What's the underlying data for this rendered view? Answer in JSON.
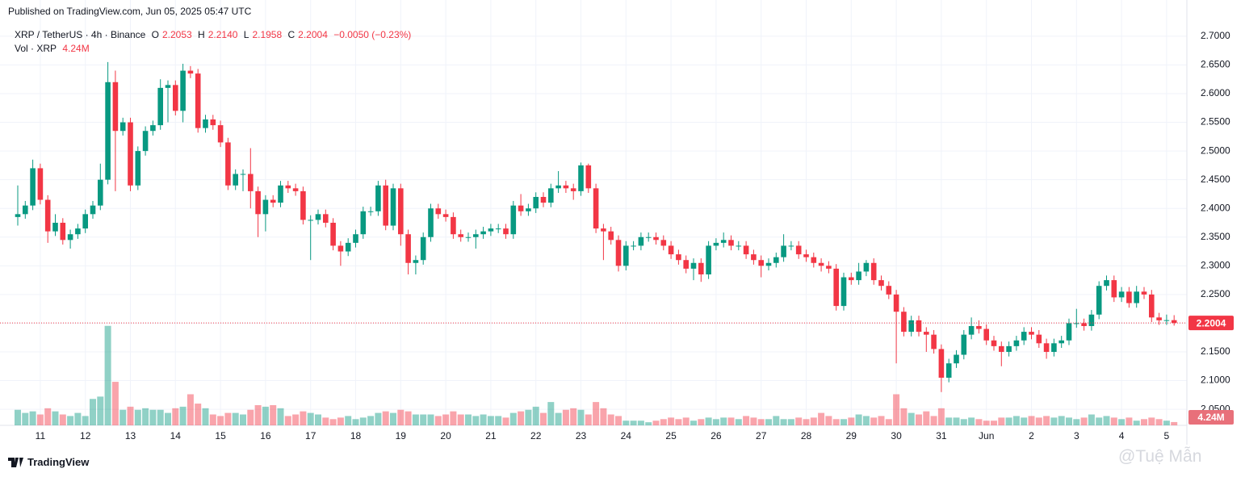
{
  "published": "Published on TradingView.com, Jun 05, 2025 05:47 UTC",
  "brand": "TradingView",
  "watermark": "@Tuệ Mẫn",
  "chart_data": {
    "type": "candlestick",
    "title": "XRP / TetherUS · 4h · Binance",
    "ohlc": [
      {
        "label": "O",
        "value": "2.2053"
      },
      {
        "label": "H",
        "value": "2.2140"
      },
      {
        "label": "L",
        "value": "2.1958"
      },
      {
        "label": "C",
        "value": "2.2004"
      }
    ],
    "change": "−0.0050 (−0.23%)",
    "volume_title": "Vol · XRP",
    "up_color": "#089981",
    "down_color": "#f23645",
    "grid": true,
    "ylim": [
      2.022,
      2.735
    ],
    "yticks": [
      {
        "value": 2.7,
        "label": "2.7000"
      },
      {
        "value": 2.65,
        "label": "2.6500"
      },
      {
        "value": 2.6,
        "label": "2.6000"
      },
      {
        "value": 2.55,
        "label": "2.5500"
      },
      {
        "value": 2.5,
        "label": "2.5000"
      },
      {
        "value": 2.45,
        "label": "2.4500"
      },
      {
        "value": 2.4,
        "label": "2.4000"
      },
      {
        "value": 2.35,
        "label": "2.3500"
      },
      {
        "value": 2.3,
        "label": "2.3000"
      },
      {
        "value": 2.25,
        "label": "2.2500"
      },
      {
        "value": 2.2,
        "label": "2.2000"
      },
      {
        "value": 2.15,
        "label": "2.1500"
      },
      {
        "value": 2.1,
        "label": "2.1000"
      },
      {
        "value": 2.05,
        "label": "2.0500"
      }
    ],
    "last_price": 2.2004,
    "last_volume": {
      "value": 4.24,
      "label": "4.24M"
    },
    "volume_ylim": [
      0,
      135
    ],
    "categories": [
      null,
      null,
      null,
      "11",
      null,
      null,
      null,
      null,
      null,
      "12",
      null,
      null,
      null,
      null,
      null,
      "13",
      null,
      null,
      null,
      null,
      null,
      "14",
      null,
      null,
      null,
      null,
      null,
      "15",
      null,
      null,
      null,
      null,
      null,
      "16",
      null,
      null,
      null,
      null,
      null,
      "17",
      null,
      null,
      null,
      null,
      null,
      "18",
      null,
      null,
      null,
      null,
      null,
      "19",
      null,
      null,
      null,
      null,
      null,
      "20",
      null,
      null,
      null,
      null,
      null,
      "21",
      null,
      null,
      null,
      null,
      null,
      "22",
      null,
      null,
      null,
      null,
      null,
      "23",
      null,
      null,
      null,
      null,
      null,
      "24",
      null,
      null,
      null,
      null,
      null,
      "25",
      null,
      null,
      null,
      null,
      null,
      "26",
      null,
      null,
      null,
      null,
      null,
      "27",
      null,
      null,
      null,
      null,
      null,
      "28",
      null,
      null,
      null,
      null,
      null,
      "29",
      null,
      null,
      null,
      null,
      null,
      "30",
      null,
      null,
      null,
      null,
      null,
      "31",
      null,
      null,
      null,
      null,
      null,
      "Jun",
      null,
      null,
      null,
      null,
      null,
      "2",
      null,
      null,
      null,
      null,
      null,
      "3",
      null,
      null,
      null,
      null,
      null,
      "4",
      null,
      null,
      null,
      null,
      null,
      "5",
      null
    ],
    "open": [
      2.385,
      2.39,
      2.405,
      2.47,
      2.415,
      2.36,
      2.375,
      2.345,
      2.355,
      2.365,
      2.39,
      2.405,
      2.45,
      2.62,
      2.535,
      2.55,
      2.44,
      2.5,
      2.535,
      2.545,
      2.61,
      2.615,
      2.57,
      2.64,
      2.635,
      2.54,
      2.555,
      2.545,
      2.515,
      2.44,
      2.46,
      2.46,
      2.43,
      2.39,
      2.415,
      2.41,
      2.44,
      2.435,
      2.43,
      2.38,
      2.38,
      2.39,
      2.375,
      2.335,
      2.325,
      2.34,
      2.355,
      2.395,
      2.395,
      2.44,
      2.37,
      2.435,
      2.355,
      2.305,
      2.31,
      2.35,
      2.4,
      2.39,
      2.385,
      2.355,
      2.35,
      2.35,
      2.355,
      2.36,
      2.365,
      2.365,
      2.355,
      2.405,
      2.395,
      2.4,
      2.42,
      2.41,
      2.435,
      2.44,
      2.435,
      2.43,
      2.475,
      2.435,
      2.365,
      2.36,
      2.345,
      2.3,
      2.335,
      2.335,
      2.35,
      2.35,
      2.345,
      2.335,
      2.32,
      2.31,
      2.295,
      2.305,
      2.285,
      2.335,
      2.34,
      2.345,
      2.335,
      2.335,
      2.32,
      2.31,
      2.3,
      2.305,
      2.315,
      2.335,
      2.335,
      2.32,
      2.315,
      2.305,
      2.3,
      2.295,
      2.23,
      2.28,
      2.275,
      2.29,
      2.305,
      2.275,
      2.265,
      2.25,
      2.22,
      2.185,
      2.205,
      2.185,
      2.18,
      2.155,
      2.105,
      2.13,
      2.145,
      2.18,
      2.195,
      2.19,
      2.17,
      2.16,
      2.15,
      2.16,
      2.17,
      2.185,
      2.18,
      2.165,
      2.15,
      2.165,
      2.17,
      2.2,
      2.2,
      2.195,
      2.215,
      2.265,
      2.275,
      2.245,
      2.255,
      2.235,
      2.255,
      2.25,
      2.21,
      2.205,
      2.2053
    ],
    "high": [
      2.44,
      2.413,
      2.485,
      2.478,
      2.423,
      2.39,
      2.383,
      2.363,
      2.373,
      2.398,
      2.413,
      2.478,
      2.655,
      2.64,
      2.558,
      2.558,
      2.508,
      2.543,
      2.553,
      2.625,
      2.623,
      2.623,
      2.652,
      2.648,
      2.643,
      2.563,
      2.563,
      2.553,
      2.523,
      2.468,
      2.468,
      2.505,
      2.438,
      2.423,
      2.423,
      2.448,
      2.448,
      2.443,
      2.438,
      2.388,
      2.398,
      2.398,
      2.383,
      2.343,
      2.348,
      2.363,
      2.403,
      2.403,
      2.448,
      2.45,
      2.443,
      2.443,
      2.363,
      2.318,
      2.358,
      2.408,
      2.408,
      2.398,
      2.393,
      2.363,
      2.358,
      2.363,
      2.368,
      2.373,
      2.373,
      2.373,
      2.413,
      2.425,
      2.408,
      2.428,
      2.428,
      2.443,
      2.465,
      2.448,
      2.443,
      2.48,
      2.478,
      2.443,
      2.373,
      2.368,
      2.353,
      2.343,
      2.343,
      2.358,
      2.358,
      2.358,
      2.353,
      2.343,
      2.328,
      2.318,
      2.313,
      2.313,
      2.343,
      2.348,
      2.358,
      2.353,
      2.343,
      2.343,
      2.328,
      2.318,
      2.313,
      2.323,
      2.355,
      2.343,
      2.343,
      2.328,
      2.323,
      2.313,
      2.308,
      2.303,
      2.288,
      2.288,
      2.305,
      2.31,
      2.313,
      2.283,
      2.273,
      2.258,
      2.228,
      2.213,
      2.213,
      2.193,
      2.188,
      2.163,
      2.138,
      2.153,
      2.188,
      2.21,
      2.205,
      2.198,
      2.178,
      2.168,
      2.168,
      2.178,
      2.193,
      2.193,
      2.188,
      2.173,
      2.173,
      2.178,
      2.208,
      2.225,
      2.208,
      2.223,
      2.273,
      2.283,
      2.283,
      2.263,
      2.263,
      2.265,
      2.263,
      2.258,
      2.218,
      2.215,
      2.214
    ],
    "low": [
      2.37,
      2.382,
      2.397,
      2.407,
      2.34,
      2.352,
      2.337,
      2.33,
      2.347,
      2.357,
      2.382,
      2.397,
      2.442,
      2.43,
      2.527,
      2.43,
      2.432,
      2.492,
      2.527,
      2.537,
      2.55,
      2.562,
      2.55,
      2.627,
      2.532,
      2.532,
      2.537,
      2.507,
      2.432,
      2.432,
      2.43,
      2.4,
      2.35,
      2.36,
      2.402,
      2.402,
      2.427,
      2.422,
      2.372,
      2.31,
      2.372,
      2.367,
      2.327,
      2.3,
      2.317,
      2.332,
      2.347,
      2.387,
      2.387,
      2.362,
      2.362,
      2.335,
      2.285,
      2.285,
      2.302,
      2.342,
      2.382,
      2.377,
      2.347,
      2.342,
      2.342,
      2.33,
      2.347,
      2.352,
      2.357,
      2.347,
      2.347,
      2.387,
      2.387,
      2.392,
      2.402,
      2.402,
      2.427,
      2.427,
      2.415,
      2.422,
      2.427,
      2.357,
      2.31,
      2.337,
      2.29,
      2.292,
      2.327,
      2.327,
      2.342,
      2.337,
      2.327,
      2.312,
      2.302,
      2.287,
      2.275,
      2.272,
      2.277,
      2.327,
      2.332,
      2.327,
      2.327,
      2.312,
      2.302,
      2.28,
      2.292,
      2.297,
      2.307,
      2.327,
      2.312,
      2.307,
      2.297,
      2.29,
      2.287,
      2.222,
      2.222,
      2.267,
      2.267,
      2.282,
      2.267,
      2.257,
      2.242,
      2.13,
      2.177,
      2.177,
      2.177,
      2.15,
      2.147,
      2.08,
      2.097,
      2.122,
      2.137,
      2.172,
      2.182,
      2.162,
      2.152,
      2.125,
      2.142,
      2.152,
      2.162,
      2.172,
      2.157,
      2.138,
      2.142,
      2.157,
      2.162,
      2.192,
      2.187,
      2.187,
      2.207,
      2.257,
      2.237,
      2.237,
      2.227,
      2.227,
      2.242,
      2.202,
      2.197,
      2.197,
      2.1958
    ],
    "close": [
      2.39,
      2.405,
      2.47,
      2.415,
      2.36,
      2.375,
      2.345,
      2.355,
      2.365,
      2.39,
      2.405,
      2.45,
      2.62,
      2.535,
      2.55,
      2.44,
      2.5,
      2.535,
      2.545,
      2.61,
      2.615,
      2.57,
      2.64,
      2.635,
      2.54,
      2.555,
      2.545,
      2.515,
      2.44,
      2.46,
      2.46,
      2.43,
      2.39,
      2.415,
      2.41,
      2.44,
      2.435,
      2.43,
      2.38,
      2.38,
      2.39,
      2.375,
      2.335,
      2.325,
      2.34,
      2.355,
      2.395,
      2.395,
      2.44,
      2.37,
      2.435,
      2.355,
      2.305,
      2.31,
      2.35,
      2.4,
      2.39,
      2.385,
      2.355,
      2.35,
      2.35,
      2.355,
      2.36,
      2.365,
      2.365,
      2.355,
      2.405,
      2.395,
      2.4,
      2.42,
      2.41,
      2.435,
      2.44,
      2.435,
      2.43,
      2.475,
      2.435,
      2.365,
      2.36,
      2.345,
      2.3,
      2.335,
      2.335,
      2.35,
      2.35,
      2.345,
      2.335,
      2.32,
      2.31,
      2.295,
      2.305,
      2.285,
      2.335,
      2.34,
      2.345,
      2.335,
      2.335,
      2.32,
      2.31,
      2.3,
      2.305,
      2.315,
      2.335,
      2.335,
      2.32,
      2.315,
      2.305,
      2.3,
      2.295,
      2.23,
      2.28,
      2.275,
      2.29,
      2.305,
      2.275,
      2.265,
      2.25,
      2.22,
      2.185,
      2.205,
      2.185,
      2.18,
      2.155,
      2.105,
      2.13,
      2.145,
      2.18,
      2.195,
      2.19,
      2.17,
      2.16,
      2.15,
      2.16,
      2.17,
      2.185,
      2.18,
      2.165,
      2.15,
      2.165,
      2.17,
      2.2,
      2.2,
      2.195,
      2.215,
      2.265,
      2.275,
      2.245,
      2.255,
      2.235,
      2.255,
      2.25,
      2.21,
      2.205,
      2.2053,
      2.2004
    ],
    "volume": [
      20,
      16,
      18,
      14,
      22,
      18,
      14,
      12,
      16,
      12,
      34,
      37,
      128,
      56,
      20,
      24,
      20,
      22,
      20,
      20,
      16,
      22,
      24,
      40,
      28,
      22,
      14,
      12,
      16,
      16,
      14,
      20,
      26,
      24,
      26,
      22,
      12,
      14,
      18,
      16,
      14,
      10,
      8,
      10,
      12,
      8,
      10,
      12,
      16,
      18,
      16,
      20,
      18,
      14,
      14,
      14,
      12,
      14,
      18,
      14,
      14,
      12,
      14,
      12,
      12,
      10,
      16,
      18,
      20,
      24,
      16,
      30,
      16,
      20,
      22,
      20,
      14,
      30,
      22,
      14,
      12,
      6,
      6,
      6,
      4,
      6,
      8,
      10,
      8,
      10,
      6,
      8,
      10,
      8,
      10,
      10,
      8,
      12,
      10,
      8,
      8,
      12,
      8,
      8,
      10,
      8,
      10,
      16,
      12,
      8,
      8,
      10,
      14,
      12,
      10,
      12,
      8,
      40,
      22,
      16,
      14,
      18,
      12,
      22,
      10,
      10,
      8,
      10,
      8,
      6,
      6,
      10,
      10,
      12,
      10,
      12,
      10,
      12,
      10,
      12,
      10,
      8,
      10,
      14,
      10,
      12,
      10,
      8,
      10,
      6,
      8,
      10,
      8,
      6,
      4.24
    ]
  }
}
